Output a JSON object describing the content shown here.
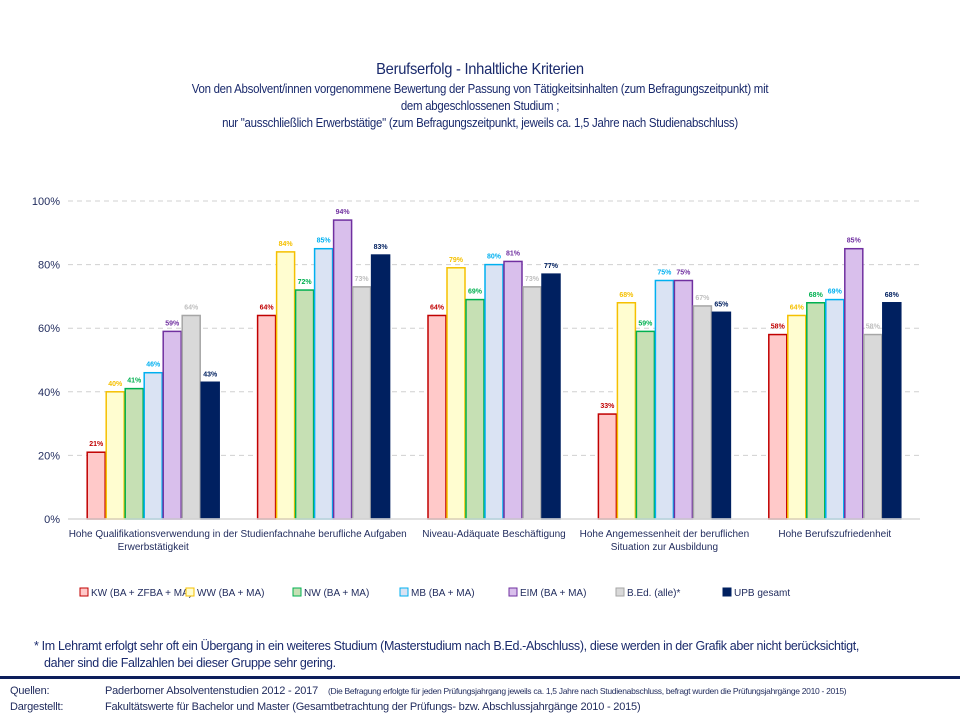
{
  "chart_data": {
    "type": "bar",
    "title": "Berufserfolg - Inhaltliche Kriterien",
    "subtitle_lines": [
      "Von den Absolvent/innen vorgenommene Bewertung der Passung von Tätigkeitsinhalten (zum Befragungszeitpunkt) mit",
      "dem abgeschlossenen Studium ;",
      "nur \"ausschließlich Erwerbstätige\" (zum Befragungszeitpunkt, jeweils ca. 1,5 Jahre nach Studienabschluss)"
    ],
    "xlabel": "",
    "ylabel": "",
    "ylim": [
      0,
      100
    ],
    "yticks": [
      0,
      20,
      40,
      60,
      80,
      100
    ],
    "ytick_labels": [
      "0%",
      "20%",
      "40%",
      "60%",
      "80%",
      "100%"
    ],
    "grid": true,
    "legend_position": "bottom",
    "categories": [
      [
        "Hohe Qualifikationsverwendung in der",
        "Erwerbstätigkeit"
      ],
      [
        "Studienfachnahe berufliche Aufgaben"
      ],
      [
        "Niveau-Adäquate Beschäftigung"
      ],
      [
        "Hohe Angemessenheit der beruflichen",
        "Situation zur Ausbildung"
      ],
      [
        "Hohe Berufszufriedenheit"
      ]
    ],
    "series": [
      {
        "name": "KW (BA + ZFBA + MA)",
        "fill": "#ffc9c9",
        "stroke": "#c00000",
        "label_color": "#c00000",
        "values": [
          21,
          64,
          64,
          33,
          58
        ]
      },
      {
        "name": "WW (BA + MA)",
        "fill": "#fffdd0",
        "stroke": "#f5c000",
        "label_color": "#f5c000",
        "values": [
          40,
          84,
          79,
          68,
          64
        ]
      },
      {
        "name": "NW (BA + MA)",
        "fill": "#c6e0b4",
        "stroke": "#00b050",
        "label_color": "#00b050",
        "values": [
          41,
          72,
          69,
          59,
          68
        ]
      },
      {
        "name": "MB (BA + MA)",
        "fill": "#dae3f3",
        "stroke": "#00b0f0",
        "label_color": "#00b0f0",
        "values": [
          46,
          85,
          80,
          75,
          69
        ]
      },
      {
        "name": "EIM (BA + MA)",
        "fill": "#d9bfec",
        "stroke": "#7030a0",
        "label_color": "#7030a0",
        "values": [
          59,
          94,
          81,
          75,
          85
        ]
      },
      {
        "name": "B.Ed. (alle)*",
        "fill": "#d9d9d9",
        "stroke": "#a6a6a6",
        "label_color": "#bfbfbf",
        "values": [
          64,
          73,
          73,
          67,
          58
        ]
      },
      {
        "name": "UPB gesamt",
        "fill": "#002060",
        "stroke": "#002060",
        "label_color": "#002060",
        "values": [
          43,
          83,
          77,
          65,
          68
        ]
      }
    ]
  },
  "footnote": [
    "* Im Lehramt erfolgt sehr oft ein Übergang in ein weiteres Studium (Masterstudium nach B.Ed.-Abschluss), diese werden in der Grafik aber nicht berücksichtigt,",
    "daher sind die Fallzahlen bei dieser Gruppe sehr gering."
  ],
  "sources": {
    "quellen_label": "Quellen:",
    "quellen_text": "Paderborner Absolventenstudien  2012 - 2017",
    "quellen_note": "(Die Befragung erfolgte für jeden Prüfungsjahrgang jeweils ca. 1,5 Jahre nach Studienabschluss, befragt wurden die Prüfungsjahrgänge 2010 - 2015)",
    "dargestellt_label": "Dargestellt:",
    "dargestellt_text": "Fakultätswerte  für Bachelor und Master  (Gesamtbetrachtung  der Prüfungs-  bzw.  Abschlussjahrgänge  2010 - 2015)"
  }
}
